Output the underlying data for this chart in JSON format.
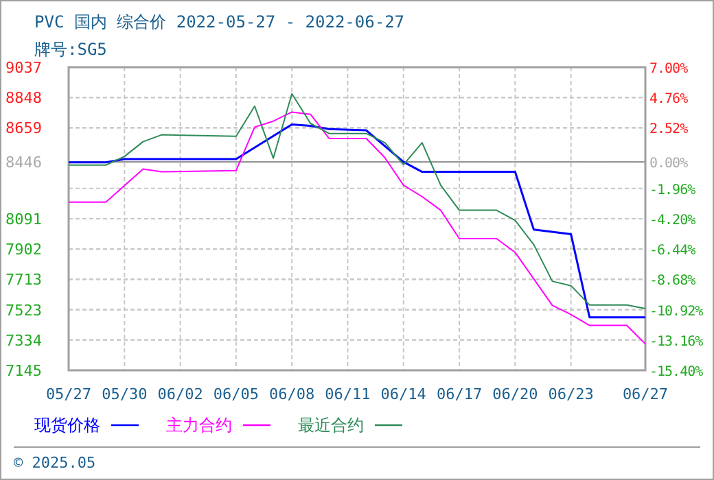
{
  "chart_data": {
    "type": "line",
    "title": "PVC 国内 综合价 2022-05-27 - 2022-06-27",
    "subtitle": "牌号:SG5",
    "annotations": [
      "© 2025.05"
    ],
    "xlim": [
      "2022-05-27",
      "2022-06-27"
    ],
    "xticks": [
      {
        "value": "2022-05-27",
        "label": "05/27"
      },
      {
        "value": "2022-05-30",
        "label": "05/30"
      },
      {
        "value": "2022-06-02",
        "label": "06/02"
      },
      {
        "value": "2022-06-05",
        "label": "06/05"
      },
      {
        "value": "2022-06-08",
        "label": "06/08"
      },
      {
        "value": "2022-06-11",
        "label": "06/11"
      },
      {
        "value": "2022-06-14",
        "label": "06/14"
      },
      {
        "value": "2022-06-17",
        "label": "06/17"
      },
      {
        "value": "2022-06-20",
        "label": "06/20"
      },
      {
        "value": "2022-06-23",
        "label": "06/23"
      },
      {
        "value": "2022-06-27",
        "label": "06/27"
      }
    ],
    "ylim": [
      7145,
      9037
    ],
    "yticks": [
      9037,
      8848,
      8659,
      8446,
      8091,
      7902,
      7713,
      7523,
      7334,
      7145
    ],
    "y2lim": [
      -15.4,
      7
    ],
    "y2ticks": [
      {
        "value": 7,
        "label": "7.00%"
      },
      {
        "value": 4.76,
        "label": "4.76%"
      },
      {
        "value": 2.52,
        "label": "2.52%"
      },
      {
        "value": 0,
        "label": "0.00%"
      },
      {
        "value": -1.96,
        "label": "-1.96%"
      },
      {
        "value": -4.2,
        "label": "-4.20%"
      },
      {
        "value": -6.44,
        "label": "-6.44%"
      },
      {
        "value": -8.68,
        "label": "-8.68%"
      },
      {
        "value": -10.92,
        "label": "-10.92%"
      },
      {
        "value": -13.16,
        "label": "-13.16%"
      },
      {
        "value": -15.4,
        "label": "-15.40%"
      }
    ],
    "ref_lines": [
      {
        "axis": "y2",
        "value": 0,
        "color": "#999999"
      }
    ],
    "grid": true,
    "legend": "bottom",
    "series": [
      {
        "name": "现货价格",
        "color": "#0000ff",
        "x": [
          "2022-05-27",
          "2022-05-29",
          "2022-05-30",
          "2022-06-05",
          "2022-06-08",
          "2022-06-09",
          "2022-06-10",
          "2022-06-12",
          "2022-06-14",
          "2022-06-15",
          "2022-06-20",
          "2022-06-21",
          "2022-06-23",
          "2022-06-24",
          "2022-06-27"
        ],
        "values": [
          8443,
          8443,
          8463,
          8463,
          8680,
          8671,
          8651,
          8643,
          8446,
          8384,
          8384,
          8024,
          7995,
          7476,
          7476
        ]
      },
      {
        "name": "主力合约",
        "color": "#ff00ff",
        "x": [
          "2022-05-27",
          "2022-05-29",
          "2022-05-31",
          "2022-06-01",
          "2022-06-05",
          "2022-06-06",
          "2022-06-07",
          "2022-06-08",
          "2022-06-09",
          "2022-06-10",
          "2022-06-12",
          "2022-06-13",
          "2022-06-14",
          "2022-06-15",
          "2022-06-16",
          "2022-06-17",
          "2022-06-19",
          "2022-06-20",
          "2022-06-21",
          "2022-06-22",
          "2022-06-23",
          "2022-06-24",
          "2022-06-26",
          "2022-06-27"
        ],
        "values": [
          8195,
          8195,
          8401,
          8384,
          8392,
          8663,
          8700,
          8757,
          8743,
          8592,
          8592,
          8472,
          8300,
          8229,
          8144,
          7967,
          7967,
          7881,
          7716,
          7550,
          7493,
          7425,
          7425,
          7310
        ]
      },
      {
        "name": "最近合约",
        "color": "#2e8b57",
        "x": [
          "2022-05-27",
          "2022-05-29",
          "2022-05-30",
          "2022-05-31",
          "2022-06-01",
          "2022-06-05",
          "2022-06-06",
          "2022-06-07",
          "2022-06-08",
          "2022-06-09",
          "2022-06-10",
          "2022-06-12",
          "2022-06-13",
          "2022-06-14",
          "2022-06-15",
          "2022-06-16",
          "2022-06-17",
          "2022-06-19",
          "2022-06-20",
          "2022-06-21",
          "2022-06-22",
          "2022-06-23",
          "2022-06-24",
          "2022-06-26",
          "2022-06-27"
        ],
        "values": [
          8426,
          8426,
          8480,
          8572,
          8615,
          8606,
          8794,
          8469,
          8871,
          8686,
          8623,
          8623,
          8566,
          8429,
          8566,
          8300,
          8144,
          8144,
          8081,
          7930,
          7701,
          7673,
          7553,
          7553,
          7530
        ]
      }
    ]
  }
}
